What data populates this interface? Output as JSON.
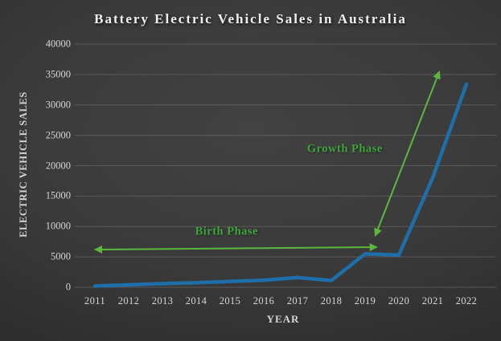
{
  "title": "Battery Electric Vehicle Sales in Australia",
  "colors": {
    "background_center": "#424242",
    "background_edge": "#1c1c1c",
    "line": "#1e6fa9",
    "grid": "#646464",
    "tick_text": "#d6d6d6",
    "title_text": "#f0f0f0",
    "annotation_text": "#3fa53c",
    "annotation_arrow": "#5cb83c"
  },
  "chart_data": {
    "type": "line",
    "title": "Battery Electric Vehicle Sales in Australia",
    "xlabel": "YEAR",
    "ylabel": "ELECTRIC VEHICLE SALES",
    "categories": [
      "2011",
      "2012",
      "2013",
      "2014",
      "2015",
      "2016",
      "2017",
      "2018",
      "2019",
      "2020",
      "2021",
      "2022"
    ],
    "values": [
      200,
      400,
      600,
      750,
      950,
      1150,
      1600,
      1100,
      5500,
      5300,
      18000,
      33400
    ],
    "ylim": [
      0,
      40000
    ],
    "ytick_step": 5000,
    "grid": true,
    "legend": "none",
    "annotations": [
      {
        "text": "Birth Phase",
        "kind": "double-arrow",
        "arrow_from": {
          "year": 2011.0,
          "value": 6200
        },
        "arrow_to": {
          "year": 2019.35,
          "value": 6600
        },
        "text_at": {
          "year": 2014.9,
          "value": 9100
        }
      },
      {
        "text": "Growth Phase",
        "kind": "double-arrow",
        "arrow_from": {
          "year": 2019.3,
          "value": 8450
        },
        "arrow_to": {
          "year": 2021.2,
          "value": 35500
        },
        "text_at": {
          "year": 2018.4,
          "value": 22700
        }
      }
    ]
  }
}
